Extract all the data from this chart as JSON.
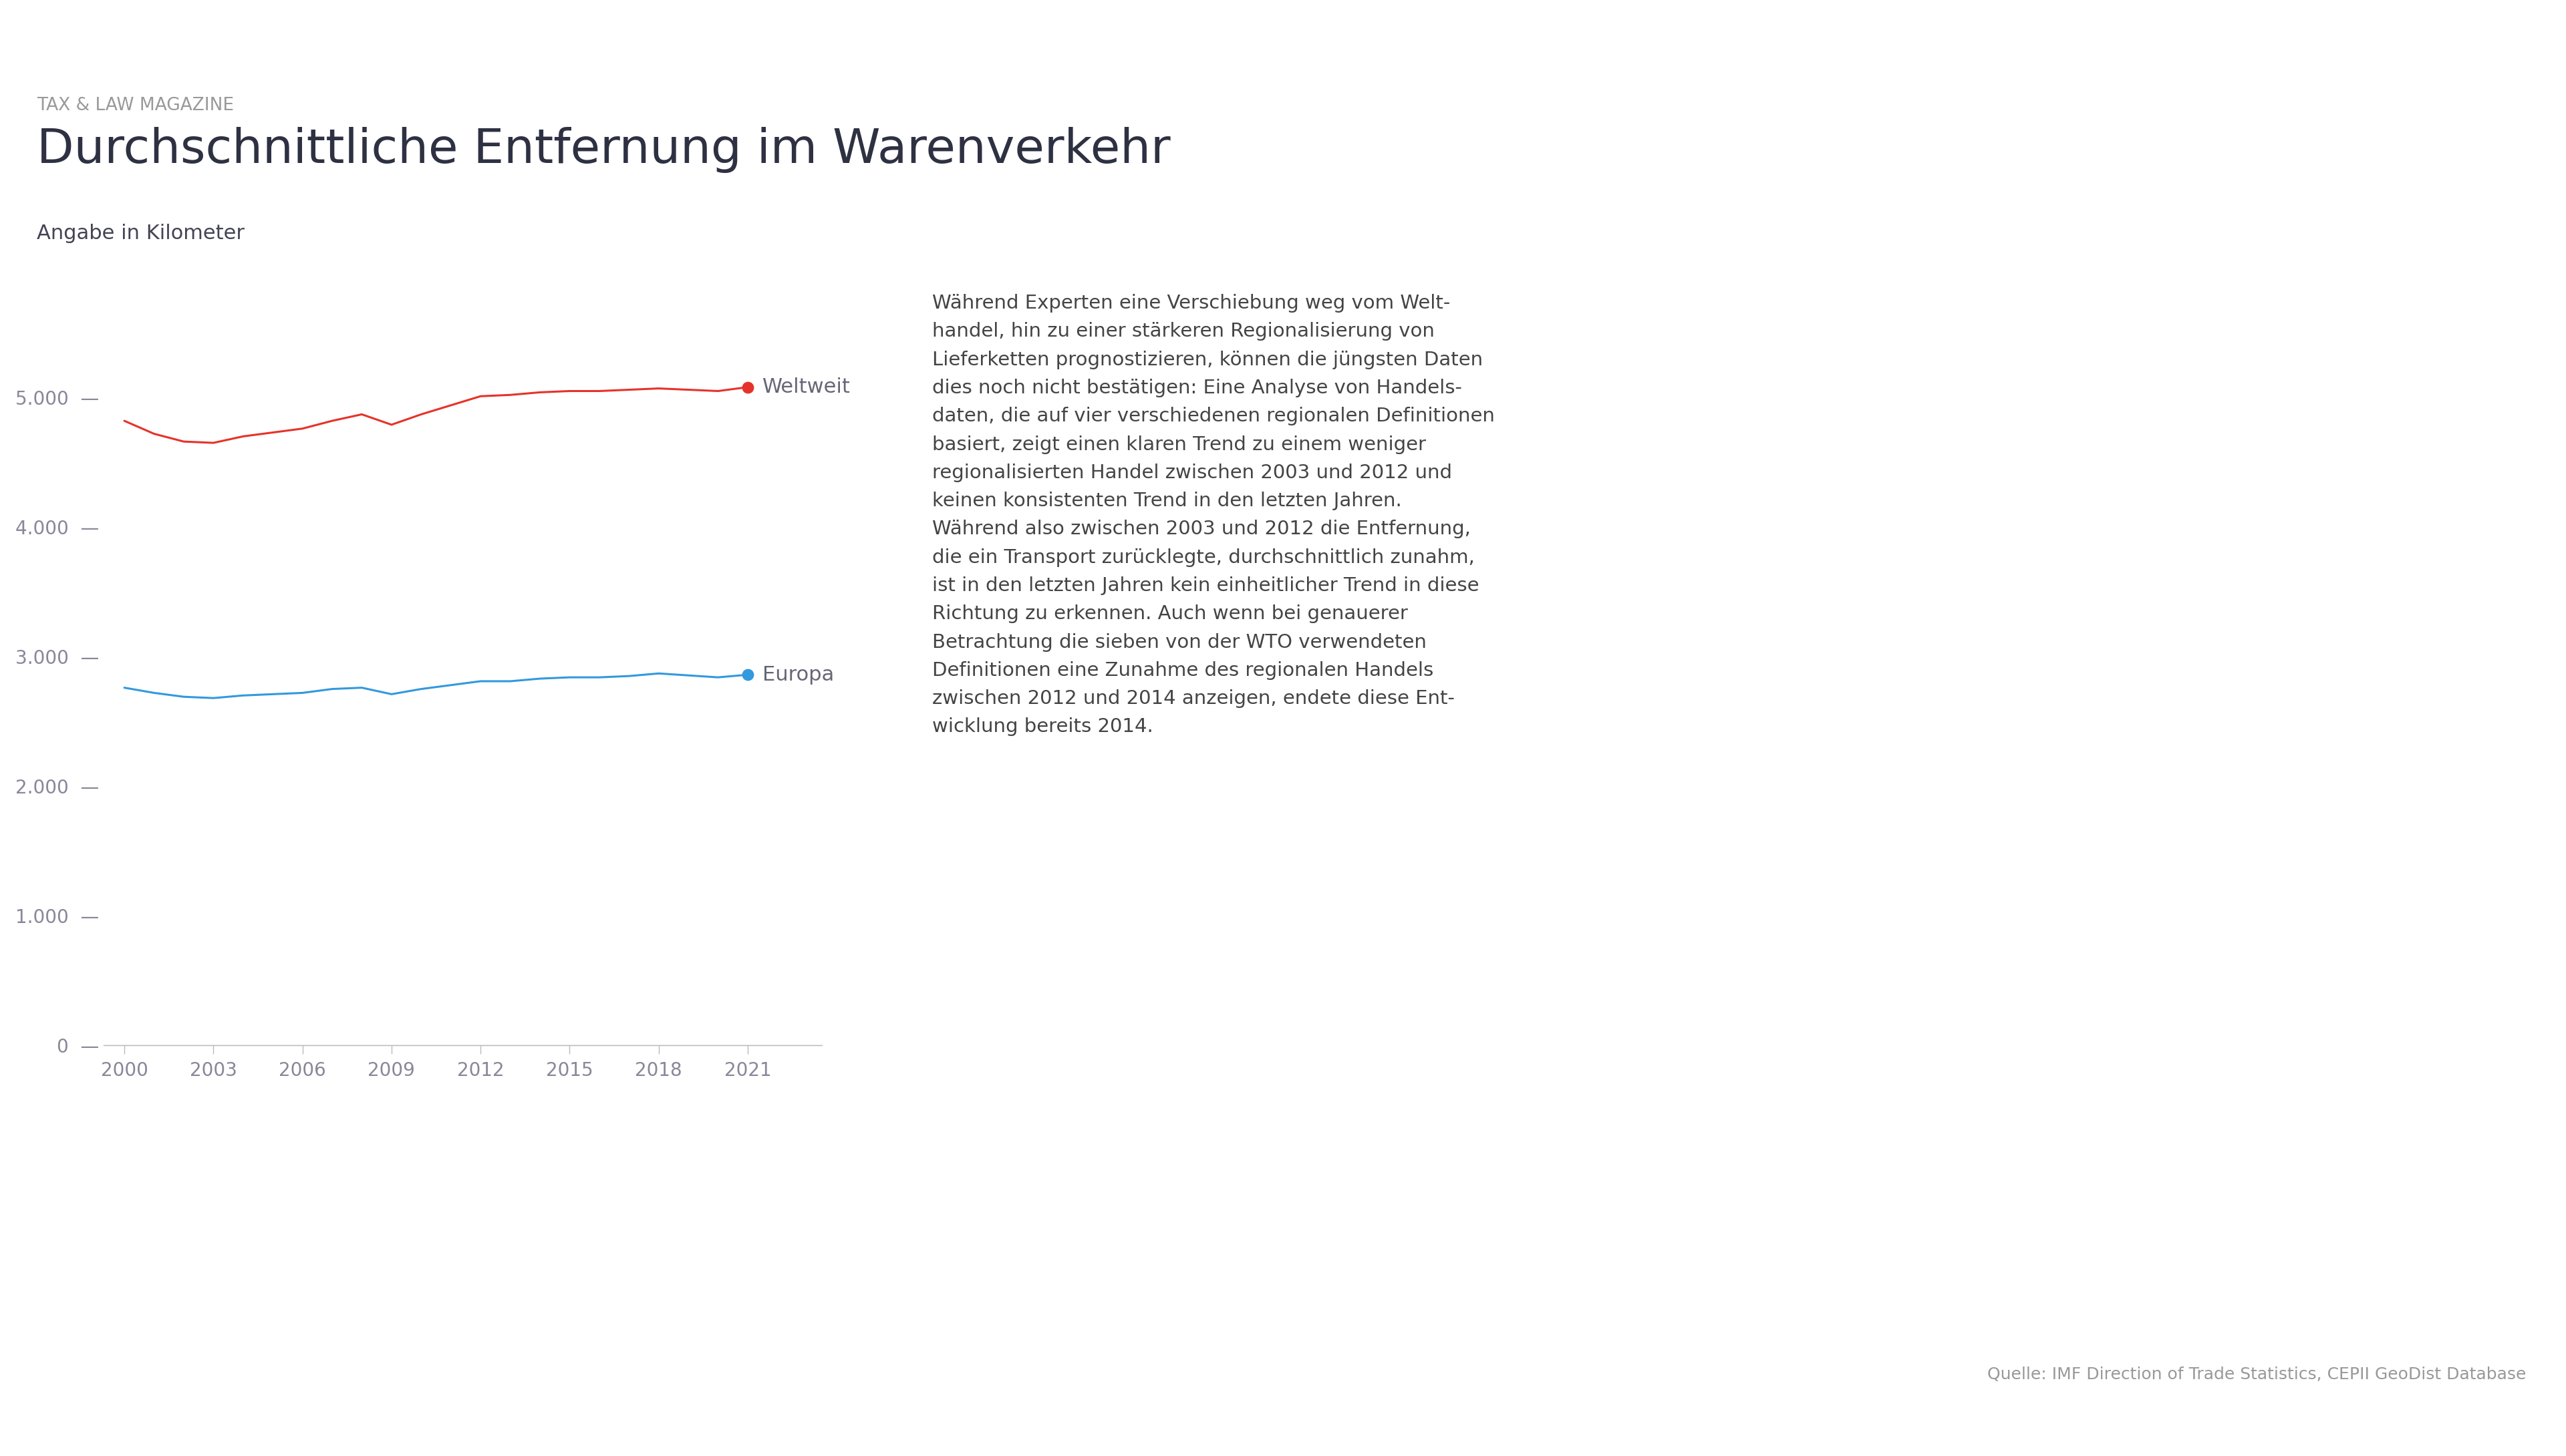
{
  "supertitle": "TAX & LAW MAGAZINE",
  "title": "Durchschnittliche Entfernung im Warenverkehr",
  "subtitle": "Angabe in Kilometer",
  "background_color": "#ffffff",
  "supertitle_color": "#999999",
  "title_color": "#2d3142",
  "subtitle_color": "#444455",
  "years": [
    2000,
    2001,
    2002,
    2003,
    2004,
    2005,
    2006,
    2007,
    2008,
    2009,
    2010,
    2011,
    2012,
    2013,
    2014,
    2015,
    2016,
    2017,
    2018,
    2019,
    2020,
    2021
  ],
  "weltweit": [
    4820,
    4720,
    4660,
    4650,
    4700,
    4730,
    4760,
    4820,
    4870,
    4790,
    4870,
    4940,
    5010,
    5020,
    5040,
    5050,
    5050,
    5060,
    5070,
    5060,
    5050,
    5080
  ],
  "europa": [
    2760,
    2720,
    2690,
    2680,
    2700,
    2710,
    2720,
    2750,
    2760,
    2710,
    2750,
    2780,
    2810,
    2810,
    2830,
    2840,
    2840,
    2850,
    2870,
    2855,
    2840,
    2860
  ],
  "weltweit_color": "#e63329",
  "europa_color": "#3399dd",
  "weltweit_label": "Weltweit",
  "europa_label": "Europa",
  "label_color": "#666677",
  "yticks": [
    0,
    1000,
    2000,
    3000,
    4000,
    5000
  ],
  "ytick_labels": [
    "0",
    "1.000",
    "2.000",
    "3.000",
    "4.000",
    "5.000"
  ],
  "xtick_years": [
    2000,
    2003,
    2006,
    2009,
    2012,
    2015,
    2018,
    2021
  ],
  "ylim": [
    0,
    5800
  ],
  "xlim_left": 1999.3,
  "xlim_right": 2023.5,
  "axis_color": "#bbbbbb",
  "tick_color": "#888899",
  "line_width": 2.2,
  "dot_size": 140,
  "annotation_text": "Während Experten eine Verschiebung weg vom Welt-\nhandel, hin zu einer stärkeren Regionalisierung von\nLieferketten prognostizieren, können die jüngsten Daten\ndies noch nicht bestätigen: Eine Analyse von Handels-\ndaten, die auf vier verschiedenen regionalen Definitionen\nbasiert, zeigt einen klaren Trend zu einem weniger\nregionalisierten Handel zwischen 2003 und 2012 und\nkeinen konsistenten Trend in den letzten Jahren.\nWährend also zwischen 2003 und 2012 die Entfernung,\ndie ein Transport zurücklegte, durchschnittlich zunahm,\nist in den letzten Jahren kein einheitlicher Trend in diese\nRichtung zu erkennen. Auch wenn bei genauerer\nBetrachtung die sieben von der WTO verwendeten\nDefinitionen eine Zunahme des regionalen Handels\nzwischen 2012 und 2014 anzeigen, endete diese Ent-\nwicklung bereits 2014.",
  "annotation_color": "#444444",
  "source_text": "Quelle: IMF Direction of Trade Statistics, CEPII GeoDist Database",
  "source_color": "#999999"
}
